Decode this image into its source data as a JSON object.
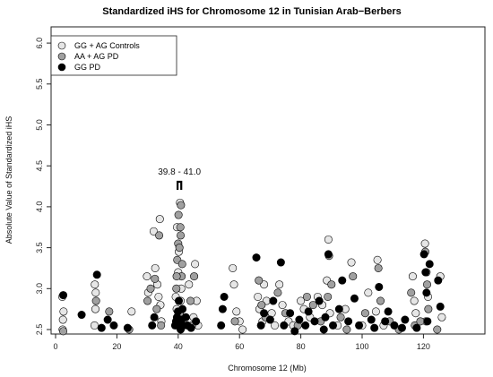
{
  "chart_data": {
    "type": "scatter",
    "title": "Standardized iHS for Chromosome 12 in Tunisian Arab−Berbers",
    "xlabel": "Chromosome 12 (Mb)",
    "ylabel": "Absolute Value of Standardized iHS",
    "xlim": [
      0,
      130
    ],
    "ylim": [
      2.35,
      6.2
    ],
    "x_ticks": [
      "0",
      "20",
      "40",
      "60",
      "80",
      "100",
      "120"
    ],
    "y_ticks": [
      "2.5",
      "3.0",
      "3.5",
      "4.0",
      "4.5",
      "5.0",
      "5.5",
      "6.0"
    ],
    "annotation": "39.8 - 41.0",
    "annotation_range": [
      39.8,
      41.0
    ],
    "legend_position": "top-left",
    "series": [
      {
        "name": "GG + AG Controls",
        "fill": "#e6e6e6",
        "points": [
          [
            2.2,
            2.9
          ],
          [
            2.4,
            2.62
          ],
          [
            2.6,
            2.72
          ],
          [
            2.3,
            2.5
          ],
          [
            12.8,
            3.05
          ],
          [
            13.1,
            2.95
          ],
          [
            13.0,
            2.75
          ],
          [
            12.7,
            2.55
          ],
          [
            24.8,
            2.72
          ],
          [
            29.8,
            3.15
          ],
          [
            30.2,
            2.95
          ],
          [
            31.2,
            2.45
          ],
          [
            32.0,
            3.7
          ],
          [
            32.5,
            3.25
          ],
          [
            33.2,
            3.05
          ],
          [
            33.6,
            2.9
          ],
          [
            34.0,
            3.85
          ],
          [
            34.2,
            2.8
          ],
          [
            34.5,
            2.6
          ],
          [
            39.2,
            2.9
          ],
          [
            39.5,
            2.75
          ],
          [
            39.8,
            2.55
          ],
          [
            40.0,
            3.2
          ],
          [
            40.3,
            2.65
          ],
          [
            40.6,
            4.05
          ],
          [
            40.8,
            2.85
          ],
          [
            41.0,
            3.0
          ],
          [
            41.2,
            2.45
          ],
          [
            40.2,
            3.45
          ],
          [
            39.6,
            3.75
          ],
          [
            43.5,
            3.05
          ],
          [
            45.0,
            2.65
          ],
          [
            45.5,
            3.3
          ],
          [
            46.0,
            2.85
          ],
          [
            46.5,
            2.55
          ],
          [
            57.8,
            3.25
          ],
          [
            58.2,
            3.05
          ],
          [
            59.0,
            2.72
          ],
          [
            60.0,
            2.6
          ],
          [
            61.0,
            2.5
          ],
          [
            66.0,
            2.9
          ],
          [
            66.5,
            2.75
          ],
          [
            67.5,
            2.6
          ],
          [
            68.0,
            3.05
          ],
          [
            68.8,
            2.85
          ],
          [
            70.5,
            2.7
          ],
          [
            71.5,
            2.55
          ],
          [
            73.0,
            3.05
          ],
          [
            74.0,
            2.8
          ],
          [
            76.0,
            2.6
          ],
          [
            77.5,
            2.55
          ],
          [
            80.0,
            2.85
          ],
          [
            81.0,
            2.75
          ],
          [
            83.0,
            2.65
          ],
          [
            85.5,
            2.9
          ],
          [
            87.0,
            2.8
          ],
          [
            88.5,
            3.1
          ],
          [
            89.0,
            3.6
          ],
          [
            89.5,
            2.7
          ],
          [
            92.0,
            2.55
          ],
          [
            94.5,
            2.75
          ],
          [
            96.5,
            3.32
          ],
          [
            98.0,
            2.45
          ],
          [
            100.0,
            2.55
          ],
          [
            102.0,
            2.95
          ],
          [
            104.5,
            2.72
          ],
          [
            105.0,
            3.35
          ],
          [
            107.0,
            2.55
          ],
          [
            110.0,
            2.45
          ],
          [
            116.5,
            3.15
          ],
          [
            117.0,
            2.85
          ],
          [
            117.5,
            2.7
          ],
          [
            120.5,
            3.55
          ],
          [
            121.0,
            3.2
          ],
          [
            121.5,
            2.9
          ],
          [
            120.8,
            2.6
          ],
          [
            125.5,
            3.15
          ],
          [
            126.0,
            2.65
          ]
        ]
      },
      {
        "name": "AA + AG PD",
        "fill": "#a0a0a0",
        "points": [
          [
            2.5,
            2.48
          ],
          [
            13.2,
            2.85
          ],
          [
            17.5,
            2.72
          ],
          [
            24.0,
            2.5
          ],
          [
            30.0,
            2.85
          ],
          [
            31.0,
            3.0
          ],
          [
            32.4,
            3.12
          ],
          [
            33.0,
            2.75
          ],
          [
            33.8,
            3.65
          ],
          [
            34.4,
            2.55
          ],
          [
            39.4,
            3.0
          ],
          [
            39.7,
            3.35
          ],
          [
            40.0,
            3.55
          ],
          [
            40.1,
            3.9
          ],
          [
            40.4,
            3.5
          ],
          [
            40.7,
            3.75
          ],
          [
            40.9,
            4.02
          ],
          [
            41.1,
            3.15
          ],
          [
            40.5,
            2.7
          ],
          [
            39.9,
            2.45
          ],
          [
            41.3,
            3.3
          ],
          [
            40.8,
            3.65
          ],
          [
            39.5,
            3.15
          ],
          [
            44.0,
            2.85
          ],
          [
            44.5,
            2.55
          ],
          [
            45.2,
            3.15
          ],
          [
            58.5,
            2.6
          ],
          [
            62.0,
            2.45
          ],
          [
            66.3,
            3.1
          ],
          [
            67.2,
            2.8
          ],
          [
            68.5,
            2.65
          ],
          [
            72.5,
            2.95
          ],
          [
            75.0,
            2.7
          ],
          [
            79.0,
            2.55
          ],
          [
            82.0,
            2.9
          ],
          [
            84.0,
            2.8
          ],
          [
            86.5,
            2.6
          ],
          [
            88.8,
            2.9
          ],
          [
            89.2,
            3.4
          ],
          [
            90.0,
            3.05
          ],
          [
            93.0,
            2.65
          ],
          [
            95.0,
            2.5
          ],
          [
            97.0,
            3.15
          ],
          [
            101.0,
            2.7
          ],
          [
            103.5,
            2.45
          ],
          [
            105.3,
            3.25
          ],
          [
            106.0,
            2.85
          ],
          [
            109.0,
            2.6
          ],
          [
            112.0,
            2.5
          ],
          [
            116.0,
            2.95
          ],
          [
            117.2,
            2.55
          ],
          [
            120.6,
            3.45
          ],
          [
            121.2,
            3.05
          ],
          [
            121.6,
            2.75
          ],
          [
            119.0,
            2.6
          ],
          [
            124.5,
            2.5
          ]
        ]
      },
      {
        "name": "GG PD",
        "fill": "#000000",
        "points": [
          [
            2.5,
            2.92
          ],
          [
            8.5,
            2.68
          ],
          [
            12.0,
            2.45
          ],
          [
            13.5,
            3.17
          ],
          [
            15.0,
            2.52
          ],
          [
            17.0,
            2.62
          ],
          [
            18.0,
            2.45
          ],
          [
            19.0,
            2.55
          ],
          [
            23.5,
            2.52
          ],
          [
            26.5,
            2.45
          ],
          [
            28.5,
            2.4
          ],
          [
            30.5,
            2.42
          ],
          [
            31.5,
            2.55
          ],
          [
            32.2,
            2.65
          ],
          [
            33.5,
            2.45
          ],
          [
            34.8,
            2.42
          ],
          [
            38.5,
            2.45
          ],
          [
            39.0,
            2.55
          ],
          [
            39.3,
            2.6
          ],
          [
            39.6,
            2.65
          ],
          [
            39.9,
            2.72
          ],
          [
            40.2,
            2.85
          ],
          [
            40.5,
            2.58
          ],
          [
            40.8,
            2.5
          ],
          [
            41.1,
            2.62
          ],
          [
            41.4,
            2.75
          ],
          [
            41.7,
            2.55
          ],
          [
            42.0,
            2.45
          ],
          [
            42.5,
            2.65
          ],
          [
            43.0,
            2.55
          ],
          [
            43.5,
            2.45
          ],
          [
            44.2,
            2.52
          ],
          [
            45.8,
            2.6
          ],
          [
            46.8,
            2.42
          ],
          [
            49.0,
            2.45
          ],
          [
            53.0,
            2.4
          ],
          [
            54.0,
            2.55
          ],
          [
            54.5,
            2.75
          ],
          [
            55.0,
            2.9
          ],
          [
            65.5,
            3.38
          ],
          [
            66.0,
            2.4
          ],
          [
            67.0,
            2.55
          ],
          [
            68.0,
            2.7
          ],
          [
            69.0,
            2.45
          ],
          [
            70.0,
            2.62
          ],
          [
            71.0,
            2.85
          ],
          [
            72.0,
            2.42
          ],
          [
            73.5,
            3.32
          ],
          [
            74.5,
            2.55
          ],
          [
            75.5,
            2.45
          ],
          [
            76.5,
            2.7
          ],
          [
            78.0,
            2.48
          ],
          [
            79.5,
            2.62
          ],
          [
            80.5,
            2.42
          ],
          [
            81.5,
            2.55
          ],
          [
            82.5,
            2.72
          ],
          [
            83.5,
            2.45
          ],
          [
            84.5,
            2.6
          ],
          [
            85.0,
            2.4
          ],
          [
            86.0,
            2.85
          ],
          [
            87.5,
            2.5
          ],
          [
            88.0,
            2.65
          ],
          [
            89.0,
            3.42
          ],
          [
            90.5,
            2.55
          ],
          [
            91.5,
            2.45
          ],
          [
            92.5,
            2.75
          ],
          [
            93.5,
            3.1
          ],
          [
            95.5,
            2.6
          ],
          [
            96.0,
            2.45
          ],
          [
            97.5,
            2.88
          ],
          [
            99.0,
            2.55
          ],
          [
            100.5,
            2.45
          ],
          [
            103.0,
            2.62
          ],
          [
            104.0,
            2.52
          ],
          [
            105.5,
            3.02
          ],
          [
            106.5,
            2.45
          ],
          [
            107.5,
            2.6
          ],
          [
            108.5,
            2.72
          ],
          [
            110.5,
            2.55
          ],
          [
            111.5,
            2.45
          ],
          [
            113.0,
            2.52
          ],
          [
            114.0,
            2.62
          ],
          [
            116.8,
            2.45
          ],
          [
            117.8,
            2.52
          ],
          [
            118.5,
            2.42
          ],
          [
            120.2,
            3.42
          ],
          [
            120.7,
            3.2
          ],
          [
            121.0,
            2.95
          ],
          [
            121.3,
            2.6
          ],
          [
            121.8,
            2.45
          ],
          [
            122.0,
            3.3
          ],
          [
            124.8,
            3.1
          ],
          [
            125.5,
            2.78
          ],
          [
            126.0,
            2.45
          ]
        ]
      }
    ]
  }
}
